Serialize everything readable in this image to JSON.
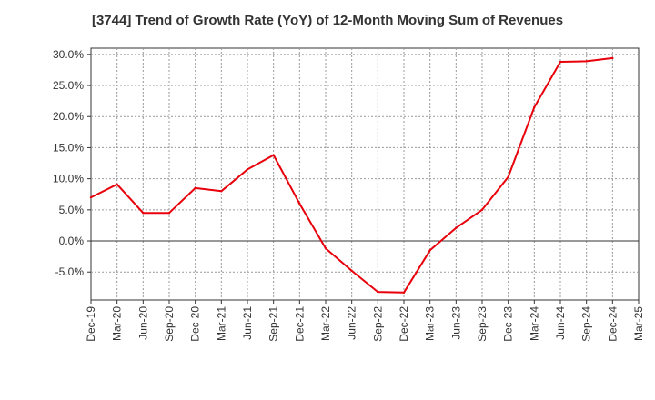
{
  "chart_data": {
    "type": "line",
    "title": "[3744]  Trend of Growth Rate (YoY) of 12-Month Moving Sum of Revenues",
    "xlabel": "",
    "ylabel": "",
    "categories": [
      "Dec-19",
      "Mar-20",
      "Jun-20",
      "Sep-20",
      "Dec-20",
      "Mar-21",
      "Jun-21",
      "Sep-21",
      "Dec-21",
      "Mar-22",
      "Jun-22",
      "Sep-22",
      "Dec-22",
      "Mar-23",
      "Jun-23",
      "Sep-23",
      "Dec-23",
      "Mar-24",
      "Jun-24",
      "Sep-24",
      "Dec-24",
      "Mar-25"
    ],
    "series": [
      {
        "values": [
          7.0,
          9.1,
          4.5,
          4.5,
          8.5,
          8.0,
          11.5,
          13.8,
          6.0,
          -1.2,
          -4.8,
          -8.2,
          -8.3,
          -1.5,
          2.1,
          5.0,
          10.3,
          21.5,
          28.8,
          28.9,
          29.4,
          null
        ]
      }
    ],
    "yticks": [
      "30.0%",
      "25.0%",
      "20.0%",
      "15.0%",
      "10.0%",
      "5.0%",
      "0.0%",
      "-5.0%"
    ],
    "ytick_values": [
      30,
      25,
      20,
      15,
      10,
      5,
      0,
      -5
    ],
    "ylim": [
      -9.5,
      31
    ],
    "grid": true,
    "line_color": "#e8000b"
  }
}
